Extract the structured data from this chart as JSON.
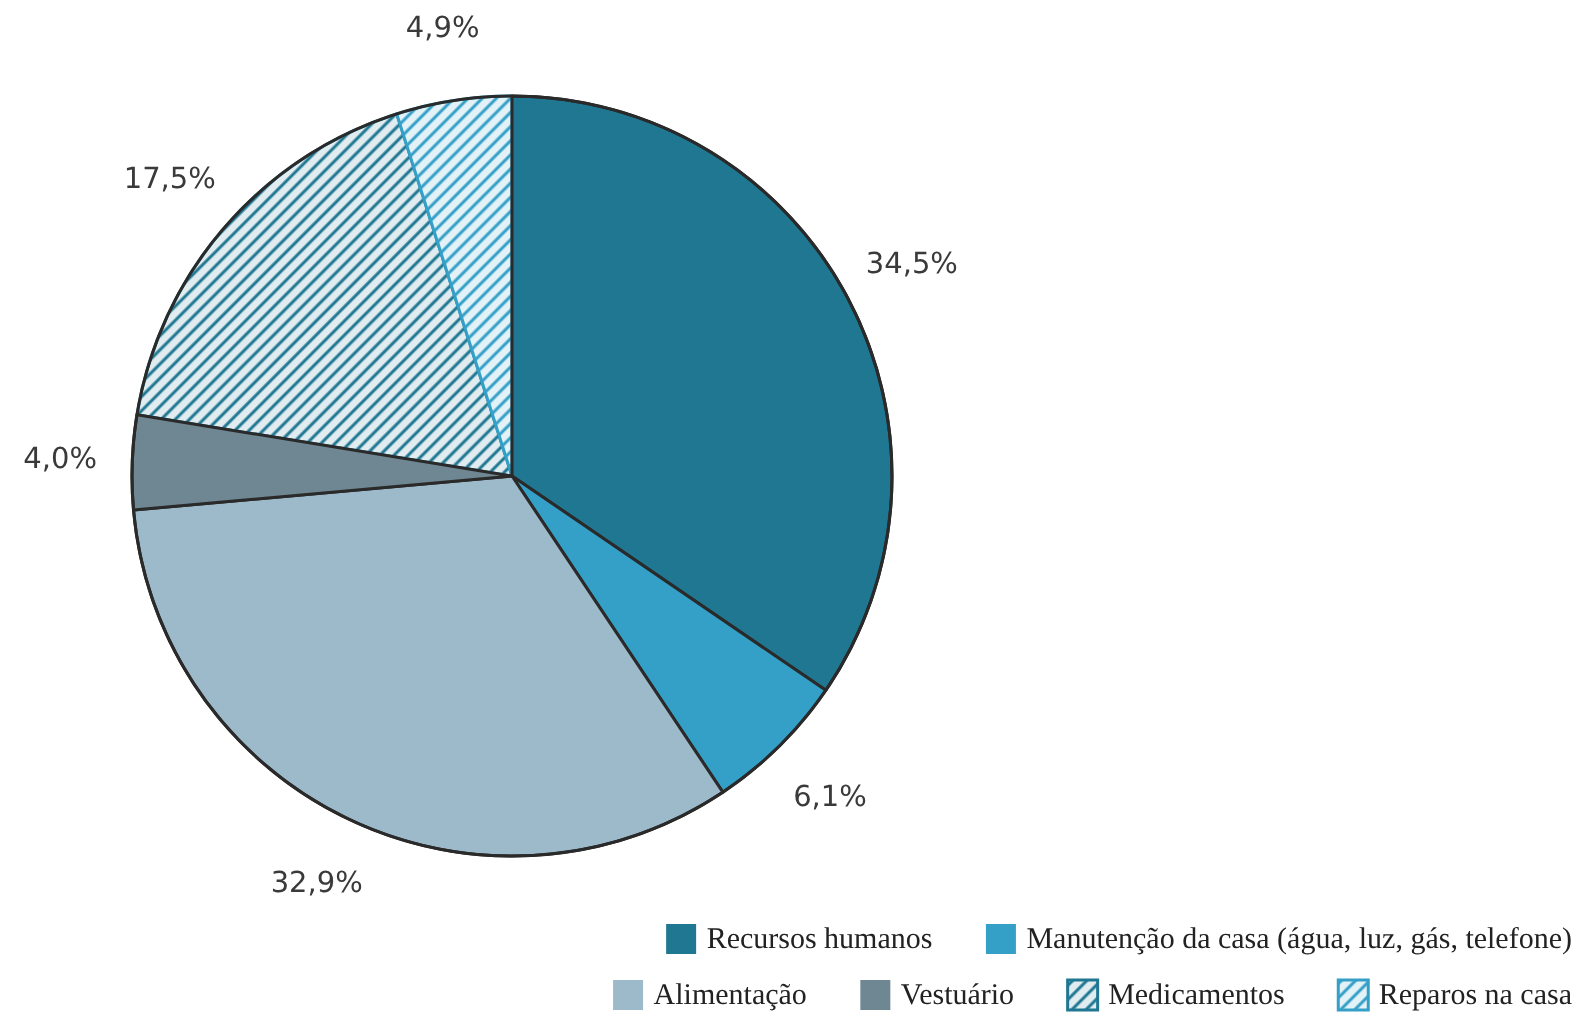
{
  "chart_data": {
    "type": "pie",
    "categories": [
      "Recursos humanos",
      "Manutenção da casa (água, luz, gás, telefone)",
      "Alimentação",
      "Vestuário",
      "Medicamentos",
      "Reparos na casa"
    ],
    "values": [
      34.5,
      6.1,
      32.9,
      4.0,
      17.5,
      4.9
    ],
    "colors": [
      "#1f7792",
      "#34a0c8",
      "#9dbacb",
      "#6e8793",
      "#1f7792",
      "#34a0c8"
    ],
    "value_labels": [
      "34,5%",
      "6,1%",
      "32,9%",
      "4,0%",
      "17,5%",
      "4,9%"
    ],
    "legend": "bottom right"
  }
}
